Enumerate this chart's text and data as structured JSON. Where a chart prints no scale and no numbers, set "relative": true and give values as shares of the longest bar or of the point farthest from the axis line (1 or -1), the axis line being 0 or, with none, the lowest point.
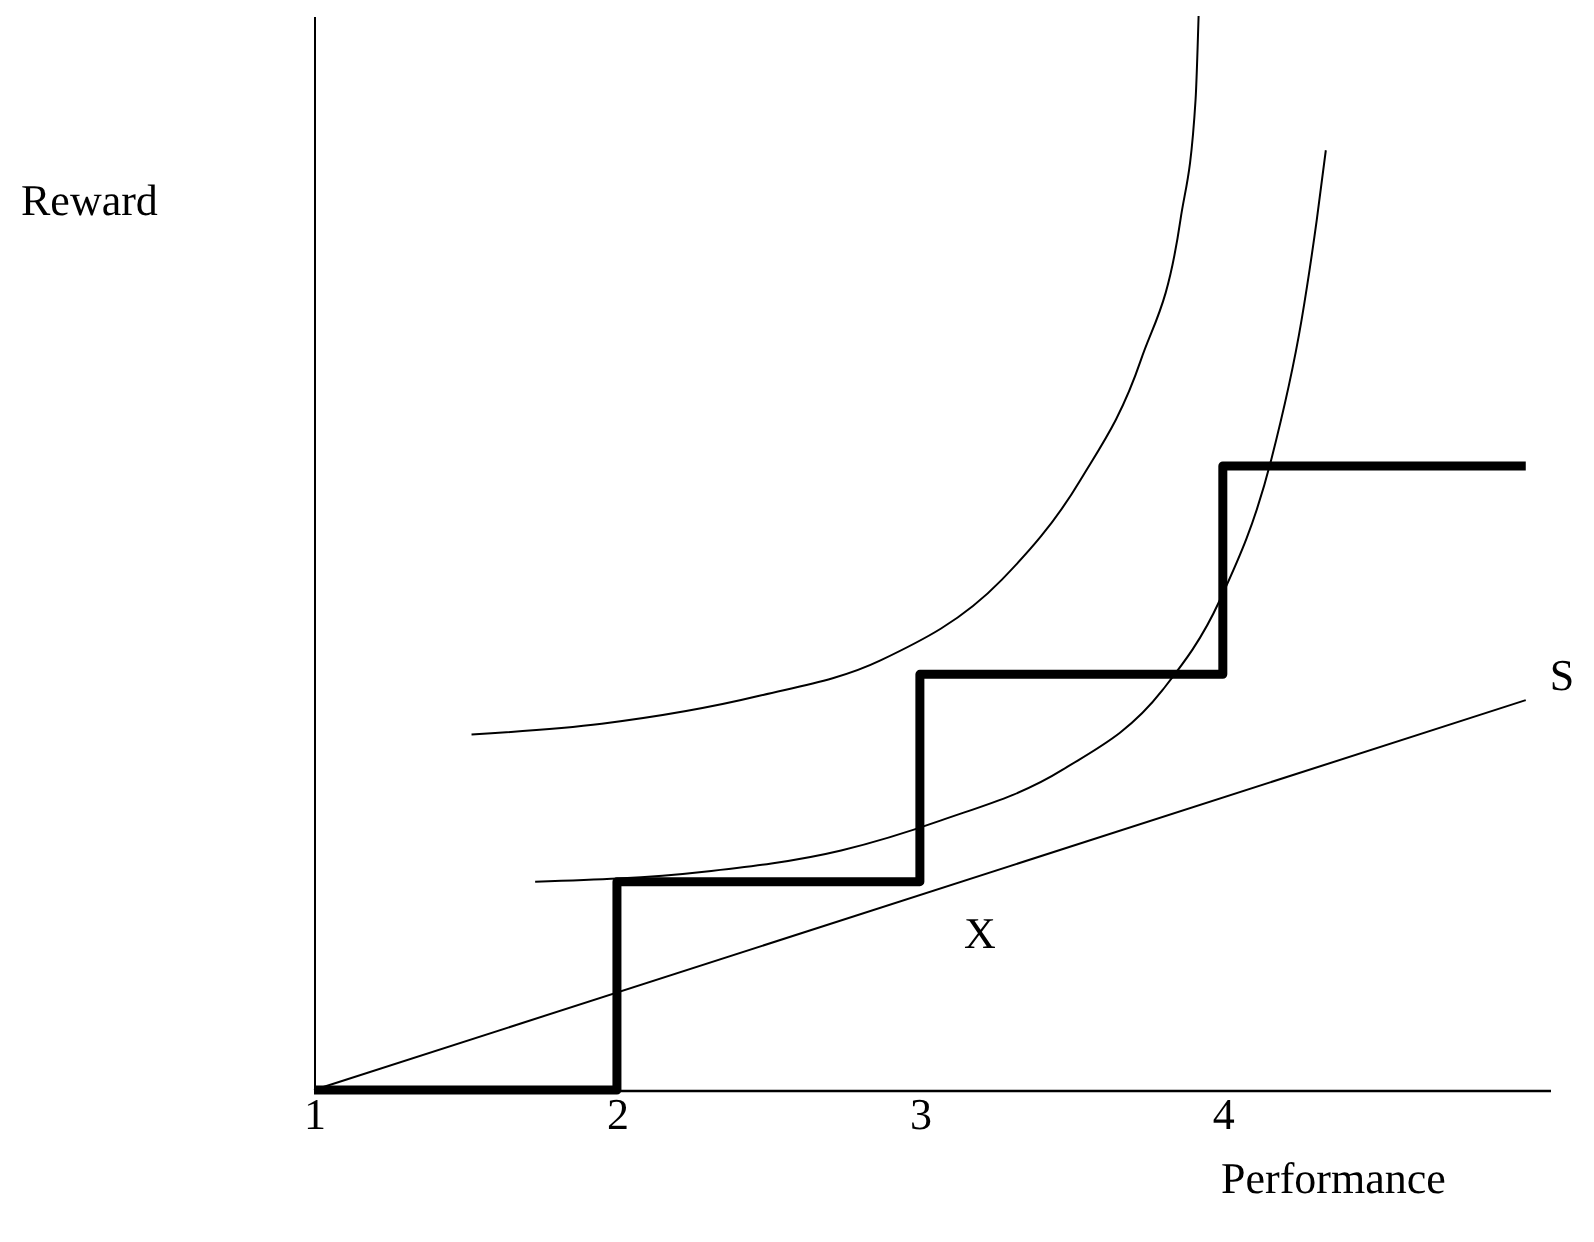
{
  "chart_data": {
    "type": "line",
    "relative": true,
    "xlabel": "Performance",
    "ylabel": "Reward",
    "xlim": [
      1,
      5.08
    ],
    "xticks": [
      1,
      2,
      3,
      4
    ],
    "marker": "none",
    "series": [
      {
        "type": "step",
        "color": "#000000",
        "x": [
          1,
          2,
          3,
          4,
          5
        ],
        "values": [
          0,
          0.194,
          0.387,
          0.581,
          0.581
        ]
      },
      {
        "name": "S",
        "color": "#000000",
        "x": [
          1,
          5.0
        ],
        "values": [
          0,
          0.363
        ]
      },
      {
        "color": "#000000",
        "x": [
          1.52,
          1.95,
          2.47,
          2.87,
          3.27,
          3.53,
          3.73,
          3.86,
          3.91,
          3.92
        ],
        "values": [
          0.331,
          0.341,
          0.367,
          0.4,
          0.475,
          0.568,
          0.68,
          0.81,
          0.922,
          1.0
        ]
      },
      {
        "color": "#000000",
        "x": [
          1.73,
          2.28,
          2.74,
          3.07,
          3.47,
          3.8,
          3.99,
          4.16,
          4.26,
          4.31,
          4.34
        ],
        "values": [
          0.194,
          0.203,
          0.223,
          0.251,
          0.298,
          0.372,
          0.456,
          0.587,
          0.717,
          0.81,
          0.875
        ]
      }
    ],
    "annotations": [
      {
        "text": "X",
        "x": 3,
        "y": 0.194
      }
    ]
  }
}
